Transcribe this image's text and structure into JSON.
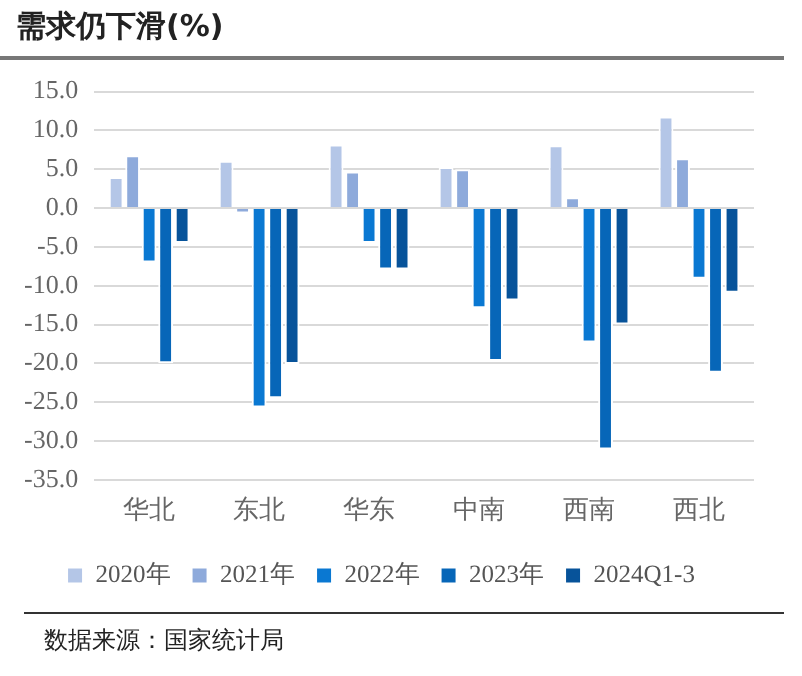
{
  "chart_data": {
    "type": "bar",
    "title": "需求仍下滑(%)",
    "categories": [
      "华北",
      "东北",
      "华东",
      "中南",
      "西南",
      "西北"
    ],
    "series": [
      {
        "name": "2020年",
        "color": "#b4c6e7",
        "values": [
          4.0,
          6.1,
          8.2,
          5.3,
          8.1,
          11.8
        ]
      },
      {
        "name": "2021年",
        "color": "#8eaadb",
        "values": [
          6.8,
          -0.7,
          4.7,
          5.0,
          1.4,
          6.4
        ]
      },
      {
        "name": "2022年",
        "color": "#0a78d2",
        "values": [
          -7.0,
          -25.7,
          -4.5,
          -12.9,
          -17.3,
          -9.1
        ]
      },
      {
        "name": "2023年",
        "color": "#0766b8",
        "values": [
          -20.0,
          -24.5,
          -7.9,
          -19.7,
          -31.1,
          -21.2
        ]
      },
      {
        "name": "2024Q1-3",
        "color": "#07539a",
        "values": [
          -4.5,
          -20.1,
          -7.9,
          -11.9,
          -15.0,
          -10.9
        ]
      }
    ],
    "ylim": [
      -35,
      15
    ],
    "yticks": [
      {
        "value": -35,
        "label": "-35.0"
      },
      {
        "value": -30,
        "label": "-30.0"
      },
      {
        "value": -25,
        "label": "-25.0"
      },
      {
        "value": -20,
        "label": "-20.0"
      },
      {
        "value": -15,
        "label": "-15.0"
      },
      {
        "value": -10,
        "label": "-10.0"
      },
      {
        "value": -5,
        "label": "-5.0"
      },
      {
        "value": 0,
        "label": "0.0"
      },
      {
        "value": 5,
        "label": "5.0"
      },
      {
        "value": 10,
        "label": "10.0"
      },
      {
        "value": 15,
        "label": "15.0"
      }
    ],
    "grid": "y",
    "legend": "bottom",
    "annotations": [
      "数据来源：国家统计局"
    ]
  }
}
